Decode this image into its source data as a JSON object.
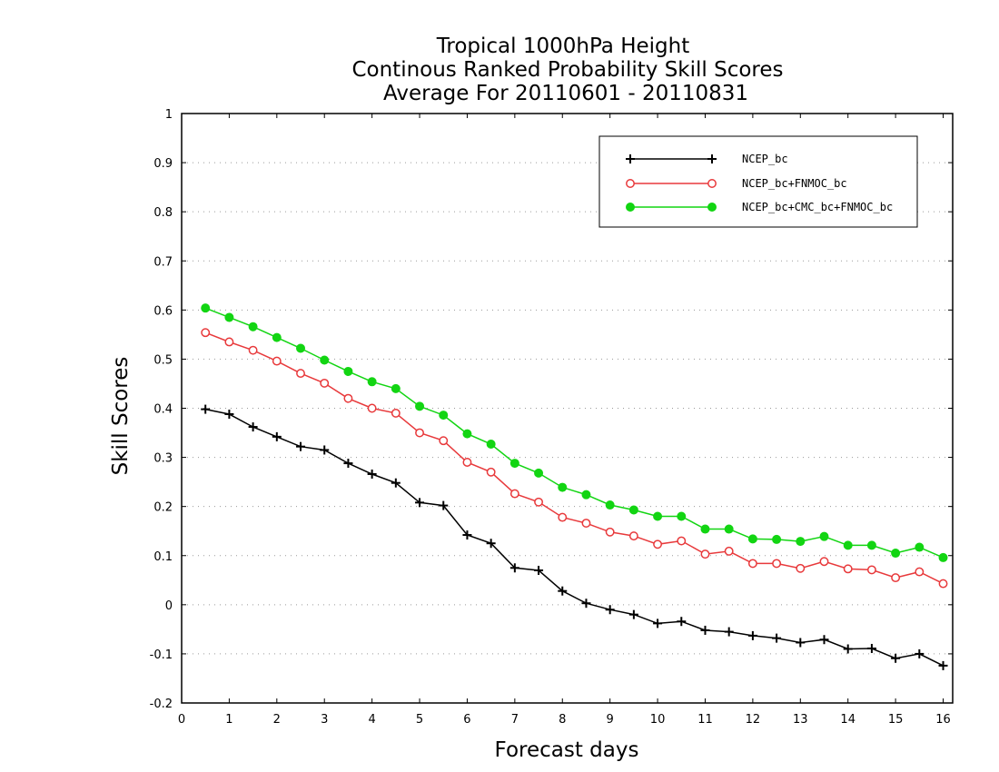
{
  "chart_data": {
    "type": "line",
    "title": [
      "Tropical 1000hPa Height",
      "Continous Ranked Probability Skill Scores",
      "Average For 20110601 - 20110831"
    ],
    "xlabel": "Forecast days",
    "ylabel": "Skill Scores",
    "xlim": [
      0,
      16.2
    ],
    "ylim": [
      -0.2,
      1
    ],
    "xticks": [
      0,
      1,
      2,
      3,
      4,
      5,
      6,
      7,
      8,
      9,
      10,
      11,
      12,
      13,
      14,
      15,
      16
    ],
    "xtick_labels": [
      "0",
      "1",
      "2",
      "3",
      "4",
      "5",
      "6",
      "7",
      "8",
      "9",
      "10",
      "11",
      "12",
      "13",
      "14",
      "15",
      "16"
    ],
    "yticks": [
      -0.2,
      -0.1,
      0,
      0.1,
      0.2,
      0.3,
      0.4,
      0.5,
      0.6,
      0.7,
      0.8,
      0.9,
      1
    ],
    "ytick_labels": [
      "-0.2",
      "-0.1",
      "0",
      "0.1",
      "0.2",
      "0.3",
      "0.4",
      "0.5",
      "0.6",
      "0.7",
      "0.8",
      "0.9",
      "1"
    ],
    "grid": "horizontal dotted",
    "legend_position": "top-right",
    "x": [
      0.5,
      1,
      1.5,
      2,
      2.5,
      3,
      3.5,
      4,
      4.5,
      5,
      5.5,
      6,
      6.5,
      7,
      7.5,
      8,
      8.5,
      9,
      9.5,
      10,
      10.5,
      11,
      11.5,
      12,
      12.5,
      13,
      13.5,
      14,
      14.5,
      15,
      15.5,
      16
    ],
    "series": [
      {
        "name": "NCEP_bc",
        "color": "#000000",
        "marker": "plus",
        "values": [
          0.398,
          0.388,
          0.362,
          0.342,
          0.322,
          0.315,
          0.288,
          0.266,
          0.248,
          0.208,
          0.202,
          0.142,
          0.125,
          0.075,
          0.07,
          0.028,
          0.003,
          -0.01,
          -0.02,
          -0.038,
          -0.034,
          -0.052,
          -0.055,
          -0.063,
          -0.068,
          -0.077,
          -0.071,
          -0.09,
          -0.089,
          -0.109,
          -0.1,
          -0.124
        ]
      },
      {
        "name": "NCEP_bc+FNMOC_bc",
        "color": "#e8393b",
        "marker": "open-circle",
        "values": [
          0.554,
          0.535,
          0.518,
          0.496,
          0.471,
          0.451,
          0.42,
          0.4,
          0.39,
          0.35,
          0.334,
          0.29,
          0.27,
          0.226,
          0.209,
          0.178,
          0.166,
          0.148,
          0.14,
          0.123,
          0.13,
          0.103,
          0.109,
          0.084,
          0.084,
          0.074,
          0.088,
          0.073,
          0.071,
          0.055,
          0.067,
          0.043
        ]
      },
      {
        "name": "NCEP_bc+CMC_bc+FNMOC_bc",
        "color": "#12d512",
        "marker": "filled-circle",
        "values": [
          0.604,
          0.585,
          0.566,
          0.544,
          0.522,
          0.498,
          0.475,
          0.454,
          0.44,
          0.404,
          0.386,
          0.348,
          0.327,
          0.288,
          0.268,
          0.239,
          0.224,
          0.203,
          0.193,
          0.18,
          0.18,
          0.154,
          0.154,
          0.134,
          0.133,
          0.129,
          0.139,
          0.121,
          0.121,
          0.105,
          0.117,
          0.096
        ]
      }
    ]
  }
}
